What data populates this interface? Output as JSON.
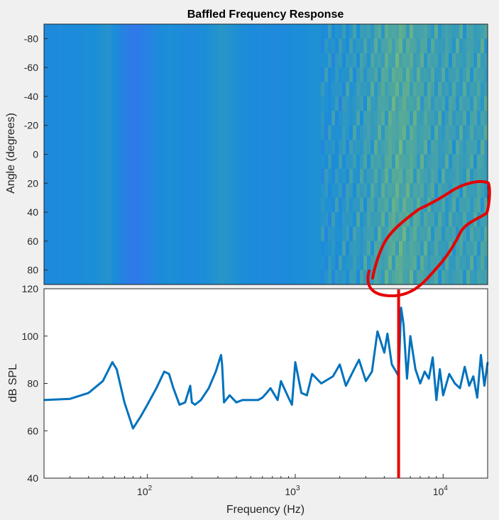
{
  "chart_data": [
    {
      "type": "heatmap",
      "title": "Baffled Frequency Response",
      "xlabel": "",
      "ylabel": "Angle (degrees)",
      "x_scale": "log",
      "xlim": [
        20,
        20000
      ],
      "ylim": [
        -90,
        90
      ],
      "y_direction": "reversed",
      "yticks": [
        -80,
        -60,
        -40,
        -20,
        0,
        20,
        40,
        60,
        80
      ],
      "colormap": "parula",
      "frequency_bands": [
        {
          "f": 20,
          "level": 0.3
        },
        {
          "f": 40,
          "level": 0.34
        },
        {
          "f": 55,
          "level": 0.4
        },
        {
          "f": 80,
          "level": 0.12
        },
        {
          "f": 110,
          "level": 0.28
        },
        {
          "f": 140,
          "level": 0.36
        },
        {
          "f": 200,
          "level": 0.3
        },
        {
          "f": 320,
          "level": 0.42
        },
        {
          "f": 500,
          "level": 0.32
        },
        {
          "f": 800,
          "level": 0.3
        },
        {
          "f": 1000,
          "level": 0.34
        },
        {
          "f": 2000,
          "level": 0.4
        },
        {
          "f": 3000,
          "level": 0.48
        },
        {
          "f": 5000,
          "level": 0.62
        },
        {
          "f": 7000,
          "level": 0.55
        },
        {
          "f": 10000,
          "level": 0.5
        },
        {
          "f": 20000,
          "level": 0.52
        }
      ],
      "colors": {
        "low": "#3d6cf5",
        "mid": "#1a8ed8",
        "high": "#a8d043"
      }
    },
    {
      "type": "line",
      "title": "",
      "xlabel": "Frequency (Hz)",
      "ylabel": "dB SPL",
      "x_scale": "log",
      "xlim": [
        20,
        20000
      ],
      "ylim": [
        40,
        120
      ],
      "xticks": [
        100,
        1000,
        10000
      ],
      "xtick_bases": [
        "10",
        "10",
        "10"
      ],
      "xtick_exponents": [
        "2",
        "3",
        "4"
      ],
      "yticks": [
        40,
        60,
        80,
        100,
        120
      ],
      "series": [
        {
          "color": "#0072bd",
          "x": [
            20,
            30,
            40,
            50,
            58,
            62,
            70,
            80,
            90,
            100,
            115,
            130,
            140,
            150,
            165,
            180,
            195,
            200,
            210,
            230,
            260,
            290,
            315,
            320,
            330,
            360,
            400,
            440,
            500,
            560,
            600,
            640,
            680,
            760,
            800,
            900,
            950,
            1000,
            1100,
            1200,
            1300,
            1500,
            1800,
            2000,
            2200,
            2500,
            2700,
            3000,
            3300,
            3600,
            4000,
            4200,
            4500,
            4800,
            5000,
            5200,
            5400,
            5700,
            6000,
            6500,
            7000,
            7500,
            8000,
            8500,
            9000,
            9500,
            10000,
            11000,
            12000,
            13000,
            14000,
            15000,
            16000,
            17000,
            18000,
            19000,
            20000
          ],
          "y": [
            73,
            73.5,
            76,
            81,
            89,
            86,
            72,
            61,
            66,
            71,
            78,
            85,
            84,
            78,
            71,
            72,
            79,
            72,
            71,
            73,
            78,
            85,
            92,
            88,
            72,
            75,
            72,
            73,
            73,
            73,
            74,
            76,
            78,
            73,
            81,
            74,
            71,
            89,
            76,
            75,
            84,
            80,
            83,
            88,
            79,
            86,
            90,
            81,
            85,
            102,
            93,
            101,
            88,
            85,
            83,
            112,
            105,
            82,
            100,
            86,
            80,
            85,
            82,
            91,
            73,
            86,
            75,
            84,
            80,
            78,
            87,
            79,
            83,
            74,
            92,
            79,
            89
          ]
        }
      ],
      "marker_line": {
        "x": 5000,
        "color": "#e60000"
      },
      "annotation_color": "#e60000"
    }
  ]
}
